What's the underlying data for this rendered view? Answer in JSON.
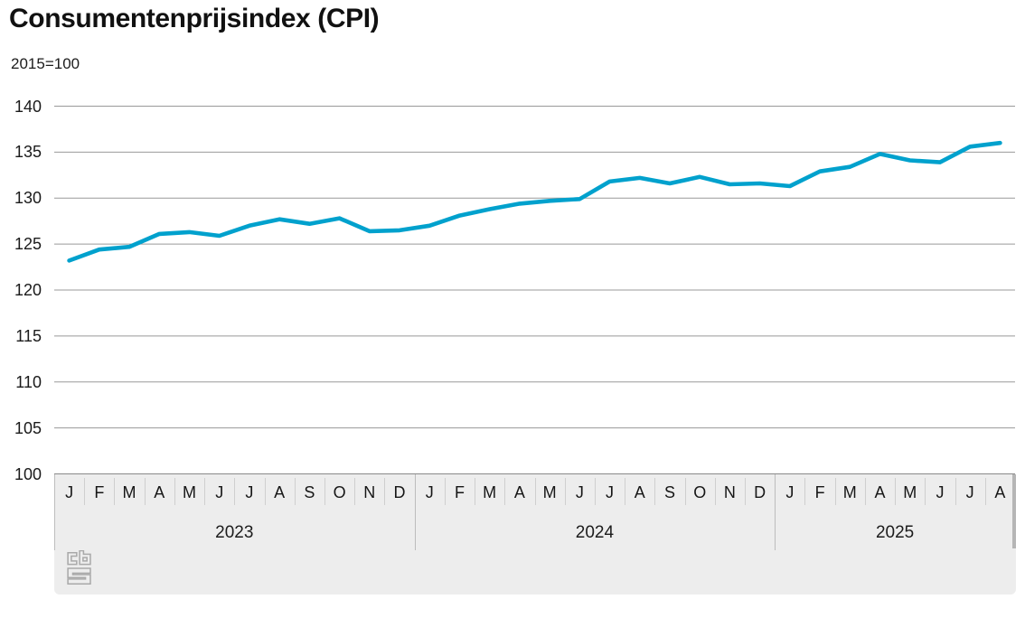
{
  "chart_data": {
    "type": "line",
    "title": "Consumentenprijsindex (CPI)",
    "subtitle": "2015=100",
    "xlabel": "",
    "ylabel": "2015=100",
    "ylim": [
      100,
      140
    ],
    "ytick_step": 5,
    "grid": true,
    "legend": "none",
    "x_groups": [
      {
        "year": "2023",
        "months": [
          "J",
          "F",
          "M",
          "A",
          "M",
          "J",
          "J",
          "A",
          "S",
          "O",
          "N",
          "D"
        ]
      },
      {
        "year": "2024",
        "months": [
          "J",
          "F",
          "M",
          "A",
          "M",
          "J",
          "J",
          "A",
          "S",
          "O",
          "N",
          "D"
        ]
      },
      {
        "year": "2025",
        "months": [
          "J",
          "F",
          "M",
          "A",
          "M",
          "J",
          "J",
          "A"
        ]
      }
    ],
    "series": [
      {
        "name": "Consumentenprijsindex (CPI)",
        "values": [
          123.2,
          124.4,
          124.7,
          126.1,
          126.3,
          125.9,
          127.0,
          127.7,
          127.2,
          127.8,
          126.4,
          126.5,
          127.0,
          128.1,
          128.8,
          129.4,
          129.7,
          129.9,
          131.8,
          132.2,
          131.6,
          132.3,
          131.5,
          131.6,
          131.3,
          132.9,
          133.4,
          134.8,
          134.1,
          133.9,
          135.6,
          136.0
        ]
      }
    ]
  },
  "branding": {
    "logo_name": "cbs-logo"
  },
  "colors": {
    "line": "#00a1cd",
    "grid": "#999999",
    "axis_line": "#8a8a8a",
    "band_bg": "#ededed",
    "month_separator": "#cfcfcf",
    "year_separator": "#bdbdbd",
    "scrollbar": "#b5b5b5",
    "logo": "#a9a9a9",
    "text": "#1a1a1a"
  }
}
